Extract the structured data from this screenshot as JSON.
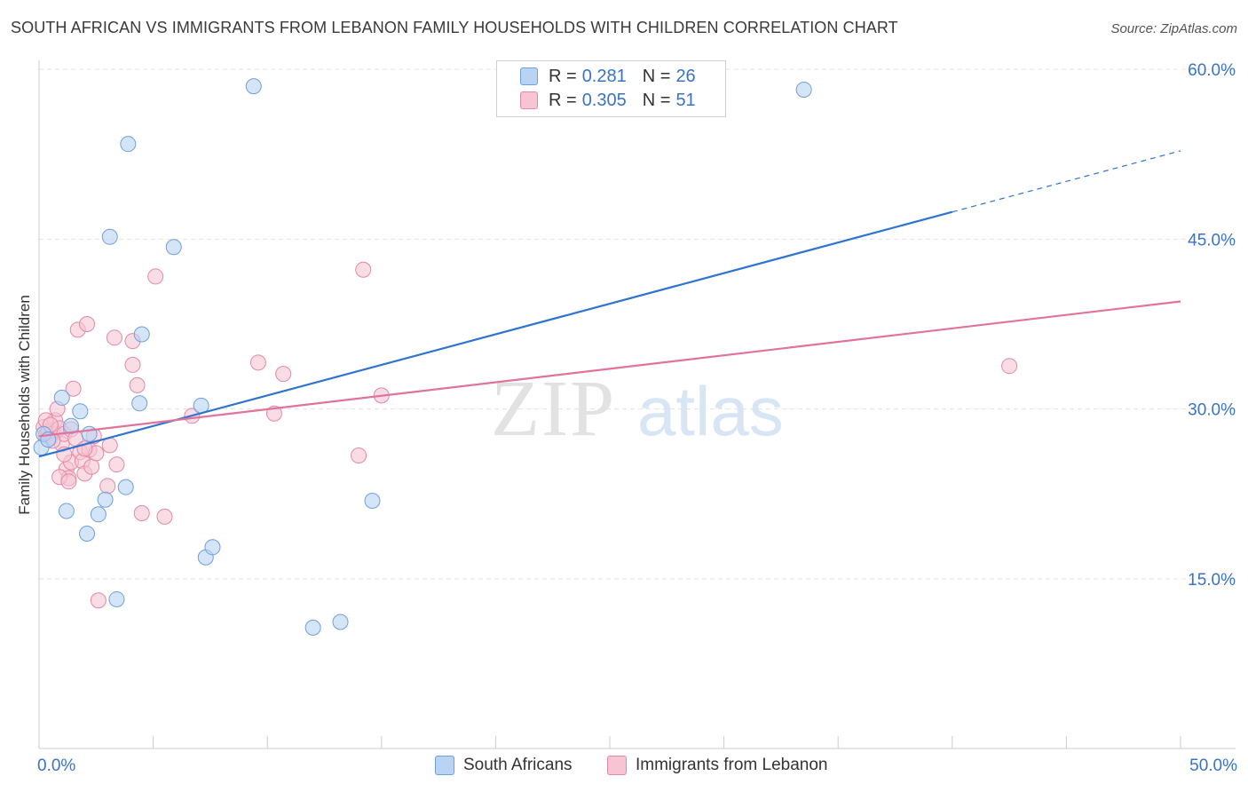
{
  "chart_data": {
    "type": "scatter",
    "title": "SOUTH AFRICAN VS IMMIGRANTS FROM LEBANON FAMILY HOUSEHOLDS WITH CHILDREN CORRELATION CHART",
    "source": "Source: ZipAtlas.com",
    "ylabel": "Family Households with Children",
    "xlabel": "",
    "xlim": [
      0,
      50
    ],
    "ylim": [
      0,
      63
    ],
    "x_tick_labels": [
      "0.0%",
      "50.0%"
    ],
    "y_ticks": [
      15,
      30,
      45,
      60
    ],
    "y_tick_labels": [
      "15.0%",
      "30.0%",
      "45.0%",
      "60.0%"
    ],
    "watermark": {
      "zip": "ZIP",
      "atlas": "atlas"
    },
    "legend": {
      "r_label": "R =",
      "n_label": "N =",
      "entries": [
        {
          "r": "0.281",
          "n": "26"
        },
        {
          "r": "0.305",
          "n": "51"
        }
      ]
    },
    "series": [
      {
        "name": "South Africans",
        "color": "#6f9fdc",
        "fill": "#b8d3f4",
        "line_color": "#2f74d0",
        "trend": {
          "x0": 0,
          "y0": 25.8,
          "x1": 40,
          "y1": 47.4,
          "dash_to_x": 50,
          "dash_to_y": 52.8
        },
        "points": [
          [
            0.1,
            26.6
          ],
          [
            0.2,
            27.8
          ],
          [
            0.4,
            27.3
          ],
          [
            1.0,
            31.0
          ],
          [
            1.2,
            21.0
          ],
          [
            1.4,
            28.5
          ],
          [
            1.8,
            29.8
          ],
          [
            2.1,
            19.0
          ],
          [
            2.2,
            27.8
          ],
          [
            2.6,
            20.7
          ],
          [
            2.9,
            22.0
          ],
          [
            3.4,
            13.2
          ],
          [
            3.8,
            23.1
          ],
          [
            3.9,
            53.4
          ],
          [
            4.4,
            30.5
          ],
          [
            4.5,
            36.6
          ],
          [
            3.1,
            45.2
          ],
          [
            5.9,
            44.3
          ],
          [
            7.1,
            30.3
          ],
          [
            7.3,
            16.9
          ],
          [
            7.6,
            17.8
          ],
          [
            9.4,
            58.5
          ],
          [
            12.0,
            10.7
          ],
          [
            13.2,
            11.2
          ],
          [
            14.6,
            21.9
          ],
          [
            33.5,
            58.2
          ]
        ]
      },
      {
        "name": "Immigrants from Lebanon",
        "color": "#e488a6",
        "fill": "#f7c4d4",
        "line_color": "#e0739a",
        "trend": {
          "x0": 0,
          "y0": 27.6,
          "x1": 50,
          "y1": 39.5
        },
        "points": [
          [
            0.2,
            28.4
          ],
          [
            0.3,
            27.7
          ],
          [
            0.4,
            28.0
          ],
          [
            0.5,
            27.5
          ],
          [
            0.6,
            28.1
          ],
          [
            0.7,
            29.0
          ],
          [
            0.8,
            30.0
          ],
          [
            0.9,
            28.3
          ],
          [
            1.0,
            26.9
          ],
          [
            1.1,
            27.8
          ],
          [
            1.2,
            24.7
          ],
          [
            1.3,
            23.9
          ],
          [
            1.4,
            28.2
          ],
          [
            1.4,
            25.3
          ],
          [
            1.5,
            31.8
          ],
          [
            1.6,
            27.4
          ],
          [
            1.7,
            37.0
          ],
          [
            1.8,
            26.2
          ],
          [
            1.9,
            25.4
          ],
          [
            2.0,
            24.3
          ],
          [
            2.1,
            37.5
          ],
          [
            2.2,
            26.4
          ],
          [
            2.3,
            24.9
          ],
          [
            2.4,
            27.6
          ],
          [
            2.5,
            26.1
          ],
          [
            2.6,
            13.1
          ],
          [
            3.0,
            23.2
          ],
          [
            3.1,
            26.8
          ],
          [
            3.4,
            25.1
          ],
          [
            3.3,
            36.3
          ],
          [
            4.1,
            36.0
          ],
          [
            4.1,
            33.9
          ],
          [
            4.3,
            32.1
          ],
          [
            4.5,
            20.8
          ],
          [
            5.1,
            41.7
          ],
          [
            5.5,
            20.5
          ],
          [
            6.7,
            29.4
          ],
          [
            9.6,
            34.1
          ],
          [
            10.3,
            29.6
          ],
          [
            10.7,
            33.1
          ],
          [
            14.0,
            25.9
          ],
          [
            14.2,
            42.3
          ],
          [
            15.0,
            31.2
          ],
          [
            42.5,
            33.8
          ],
          [
            0.9,
            24.0
          ],
          [
            1.3,
            23.6
          ],
          [
            0.6,
            27.2
          ],
          [
            2.0,
            26.5
          ],
          [
            0.3,
            29.0
          ],
          [
            1.1,
            26.0
          ],
          [
            0.5,
            28.6
          ]
        ]
      }
    ]
  }
}
